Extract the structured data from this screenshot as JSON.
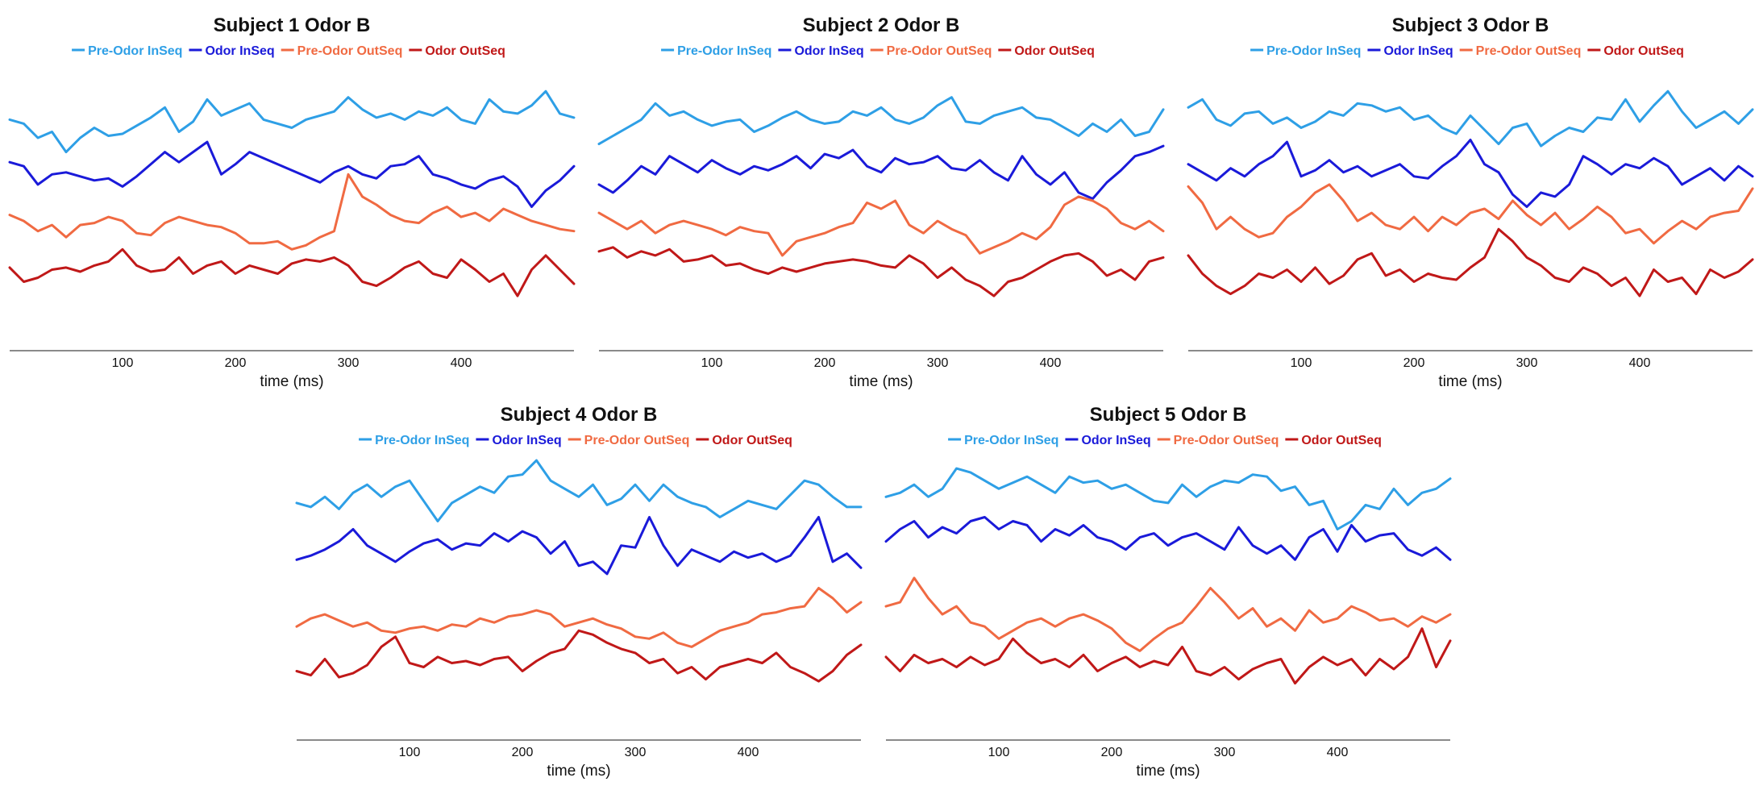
{
  "figure": {
    "xlabel": "time (ms)",
    "colors": {
      "pre_odor_inseq": "#2E9FE6",
      "odor_inseq": "#1A1AD9",
      "pre_odor_outseq": "#F06A42",
      "odor_outseq": "#C01818"
    }
  },
  "chart_data": [
    {
      "type": "line",
      "title": "Subject 1 Odor B",
      "xlabel": "time (ms)",
      "xticks": [
        100,
        200,
        300,
        400
      ],
      "xlim": [
        0,
        500
      ],
      "ylim": [
        0,
        14
      ],
      "series": [
        {
          "name": "Pre-Odor InSeq",
          "key": "pre_odor_inseq",
          "values": [
            11.2,
            11.0,
            10.3,
            10.6,
            9.6,
            10.3,
            10.8,
            10.4,
            10.5,
            10.9,
            11.3,
            11.8,
            10.6,
            11.1,
            12.2,
            11.4,
            11.7,
            12.0,
            11.2,
            11.0,
            10.8,
            11.2,
            11.4,
            11.6,
            12.3,
            11.7,
            11.3,
            11.5,
            11.2,
            11.6,
            11.4,
            11.8,
            11.2,
            11.0,
            12.2,
            11.6,
            11.5,
            11.9,
            12.6,
            11.5,
            11.3
          ]
        },
        {
          "name": "Odor InSeq",
          "key": "odor_inseq",
          "values": [
            9.1,
            8.9,
            8.0,
            8.5,
            8.6,
            8.4,
            8.2,
            8.3,
            7.9,
            8.4,
            9.0,
            9.6,
            9.1,
            9.6,
            10.1,
            8.5,
            9.0,
            9.6,
            9.3,
            9.0,
            8.7,
            8.4,
            8.1,
            8.6,
            8.9,
            8.5,
            8.3,
            8.9,
            9.0,
            9.4,
            8.5,
            8.3,
            8.0,
            7.8,
            8.2,
            8.4,
            7.9,
            6.9,
            7.7,
            8.2,
            8.9
          ]
        },
        {
          "name": "Pre-Odor OutSeq",
          "key": "pre_odor_outseq",
          "values": [
            6.5,
            6.2,
            5.7,
            6.0,
            5.4,
            6.0,
            6.1,
            6.4,
            6.2,
            5.6,
            5.5,
            6.1,
            6.4,
            6.2,
            6.0,
            5.9,
            5.6,
            5.1,
            5.1,
            5.2,
            4.8,
            5.0,
            5.4,
            5.7,
            8.5,
            7.4,
            7.0,
            6.5,
            6.2,
            6.1,
            6.6,
            6.9,
            6.4,
            6.6,
            6.2,
            6.8,
            6.5,
            6.2,
            6.0,
            5.8,
            5.7
          ]
        },
        {
          "name": "Odor OutSeq",
          "key": "odor_outseq",
          "values": [
            3.9,
            3.2,
            3.4,
            3.8,
            3.9,
            3.7,
            4.0,
            4.2,
            4.8,
            4.0,
            3.7,
            3.8,
            4.4,
            3.6,
            4.0,
            4.2,
            3.6,
            4.0,
            3.8,
            3.6,
            4.1,
            4.3,
            4.2,
            4.4,
            4.0,
            3.2,
            3.0,
            3.4,
            3.9,
            4.2,
            3.6,
            3.4,
            4.3,
            3.8,
            3.2,
            3.6,
            2.5,
            3.8,
            4.5,
            3.8,
            3.1
          ]
        }
      ]
    },
    {
      "type": "line",
      "title": "Subject 2 Odor B",
      "xlabel": "time (ms)",
      "xticks": [
        100,
        200,
        300,
        400
      ],
      "xlim": [
        0,
        500
      ],
      "ylim": [
        0,
        14
      ],
      "series": [
        {
          "name": "Pre-Odor InSeq",
          "key": "pre_odor_inseq",
          "values": [
            10.0,
            10.4,
            10.8,
            11.2,
            12.0,
            11.4,
            11.6,
            11.2,
            10.9,
            11.1,
            11.2,
            10.6,
            10.9,
            11.3,
            11.6,
            11.2,
            11.0,
            11.1,
            11.6,
            11.4,
            11.8,
            11.2,
            11.0,
            11.3,
            11.9,
            12.3,
            11.1,
            11.0,
            11.4,
            11.6,
            11.8,
            11.3,
            11.2,
            10.8,
            10.4,
            11.0,
            10.6,
            11.2,
            10.4,
            10.6,
            11.7
          ]
        },
        {
          "name": "Odor InSeq",
          "key": "odor_inseq",
          "values": [
            8.0,
            7.6,
            8.2,
            8.9,
            8.5,
            9.4,
            9.0,
            8.6,
            9.2,
            8.8,
            8.5,
            8.9,
            8.7,
            9.0,
            9.4,
            8.8,
            9.5,
            9.3,
            9.7,
            8.9,
            8.6,
            9.3,
            9.0,
            9.1,
            9.4,
            8.8,
            8.7,
            9.2,
            8.6,
            8.2,
            9.4,
            8.5,
            8.0,
            8.6,
            7.6,
            7.3,
            8.1,
            8.7,
            9.4,
            9.6,
            9.9
          ]
        },
        {
          "name": "Pre-Odor OutSeq",
          "key": "pre_odor_outseq",
          "values": [
            6.6,
            6.2,
            5.8,
            6.2,
            5.6,
            6.0,
            6.2,
            6.0,
            5.8,
            5.5,
            5.9,
            5.7,
            5.6,
            4.5,
            5.2,
            5.4,
            5.6,
            5.9,
            6.1,
            7.1,
            6.8,
            7.2,
            6.0,
            5.6,
            6.2,
            5.8,
            5.5,
            4.6,
            4.9,
            5.2,
            5.6,
            5.3,
            5.9,
            7.0,
            7.4,
            7.2,
            6.8,
            6.1,
            5.8,
            6.2,
            5.7
          ]
        },
        {
          "name": "Odor OutSeq",
          "key": "odor_outseq",
          "values": [
            4.7,
            4.9,
            4.4,
            4.7,
            4.5,
            4.8,
            4.2,
            4.3,
            4.5,
            4.0,
            4.1,
            3.8,
            3.6,
            3.9,
            3.7,
            3.9,
            4.1,
            4.2,
            4.3,
            4.2,
            4.0,
            3.9,
            4.5,
            4.1,
            3.4,
            3.9,
            3.3,
            3.0,
            2.5,
            3.2,
            3.4,
            3.8,
            4.2,
            4.5,
            4.6,
            4.2,
            3.5,
            3.8,
            3.3,
            4.2,
            4.4
          ]
        }
      ]
    },
    {
      "type": "line",
      "title": "Subject 3 Odor B",
      "xlabel": "time (ms)",
      "xticks": [
        100,
        200,
        300,
        400
      ],
      "xlim": [
        0,
        500
      ],
      "ylim": [
        0,
        14
      ],
      "series": [
        {
          "name": "Pre-Odor InSeq",
          "key": "pre_odor_inseq",
          "values": [
            11.8,
            12.2,
            11.2,
            10.9,
            11.5,
            11.6,
            11.0,
            11.3,
            10.8,
            11.1,
            11.6,
            11.4,
            12.0,
            11.9,
            11.6,
            11.8,
            11.2,
            11.4,
            10.8,
            10.5,
            11.4,
            10.7,
            10.0,
            10.8,
            11.0,
            9.9,
            10.4,
            10.8,
            10.6,
            11.3,
            11.2,
            12.2,
            11.1,
            11.9,
            12.6,
            11.6,
            10.8,
            11.2,
            11.6,
            11.0,
            11.7
          ]
        },
        {
          "name": "Odor InSeq",
          "key": "odor_inseq",
          "values": [
            9.0,
            8.6,
            8.2,
            8.8,
            8.4,
            9.0,
            9.4,
            10.1,
            8.4,
            8.7,
            9.2,
            8.6,
            8.9,
            8.4,
            8.7,
            9.0,
            8.4,
            8.3,
            8.9,
            9.4,
            10.2,
            9.0,
            8.6,
            7.5,
            6.9,
            7.6,
            7.4,
            8.0,
            9.4,
            9.0,
            8.5,
            9.0,
            8.8,
            9.3,
            8.9,
            8.0,
            8.4,
            8.8,
            8.2,
            8.9,
            8.4
          ]
        },
        {
          "name": "Pre-Odor OutSeq",
          "key": "pre_odor_outseq",
          "values": [
            7.9,
            7.1,
            5.8,
            6.4,
            5.8,
            5.4,
            5.6,
            6.4,
            6.9,
            7.6,
            8.0,
            7.2,
            6.2,
            6.6,
            6.0,
            5.8,
            6.4,
            5.7,
            6.4,
            6.0,
            6.6,
            6.8,
            6.3,
            7.2,
            6.5,
            6.0,
            6.6,
            5.8,
            6.3,
            6.9,
            6.4,
            5.6,
            5.8,
            5.1,
            5.7,
            6.2,
            5.8,
            6.4,
            6.6,
            6.7,
            7.8
          ]
        },
        {
          "name": "Odor OutSeq",
          "key": "odor_outseq",
          "values": [
            4.5,
            3.6,
            3.0,
            2.6,
            3.0,
            3.6,
            3.4,
            3.8,
            3.2,
            3.9,
            3.1,
            3.5,
            4.3,
            4.6,
            3.5,
            3.8,
            3.2,
            3.6,
            3.4,
            3.3,
            3.9,
            4.4,
            5.8,
            5.2,
            4.4,
            4.0,
            3.4,
            3.2,
            3.9,
            3.6,
            3.0,
            3.4,
            2.5,
            3.8,
            3.2,
            3.4,
            2.6,
            3.8,
            3.4,
            3.7,
            4.3
          ]
        }
      ]
    },
    {
      "type": "line",
      "title": "Subject 4 Odor B",
      "xlabel": "time (ms)",
      "xticks": [
        100,
        200,
        300,
        400
      ],
      "xlim": [
        0,
        500
      ],
      "ylim": [
        0,
        14
      ],
      "series": [
        {
          "name": "Pre-Odor InSeq",
          "key": "pre_odor_inseq",
          "values": [
            11.5,
            11.3,
            11.8,
            11.2,
            12.0,
            12.4,
            11.8,
            12.3,
            12.6,
            11.6,
            10.6,
            11.5,
            11.9,
            12.3,
            12.0,
            12.8,
            12.9,
            13.6,
            12.6,
            12.2,
            11.8,
            12.4,
            11.4,
            11.7,
            12.4,
            11.6,
            12.4,
            11.8,
            11.5,
            11.3,
            10.8,
            11.2,
            11.6,
            11.4,
            11.2,
            11.9,
            12.6,
            12.4,
            11.8,
            11.3,
            11.3
          ]
        },
        {
          "name": "Odor InSeq",
          "key": "odor_inseq",
          "values": [
            8.7,
            8.9,
            9.2,
            9.6,
            10.2,
            9.4,
            9.0,
            8.6,
            9.1,
            9.5,
            9.7,
            9.2,
            9.5,
            9.4,
            10.0,
            9.6,
            10.1,
            9.8,
            9.0,
            9.6,
            8.4,
            8.6,
            8.0,
            9.4,
            9.3,
            10.8,
            9.4,
            8.4,
            9.2,
            8.9,
            8.6,
            9.1,
            8.8,
            9.0,
            8.6,
            8.9,
            9.8,
            10.8,
            8.6,
            9.0,
            8.3
          ]
        },
        {
          "name": "Pre-Odor OutSeq",
          "key": "pre_odor_outseq",
          "values": [
            5.4,
            5.8,
            6.0,
            5.7,
            5.4,
            5.6,
            5.2,
            5.1,
            5.3,
            5.4,
            5.2,
            5.5,
            5.4,
            5.8,
            5.6,
            5.9,
            6.0,
            6.2,
            6.0,
            5.4,
            5.6,
            5.8,
            5.5,
            5.3,
            4.9,
            4.8,
            5.1,
            4.6,
            4.4,
            4.8,
            5.2,
            5.4,
            5.6,
            6.0,
            6.1,
            6.3,
            6.4,
            7.3,
            6.8,
            6.1,
            6.6
          ]
        },
        {
          "name": "Odor OutSeq",
          "key": "odor_outseq",
          "values": [
            3.2,
            3.0,
            3.8,
            2.9,
            3.1,
            3.5,
            4.4,
            4.9,
            3.6,
            3.4,
            3.9,
            3.6,
            3.7,
            3.5,
            3.8,
            3.9,
            3.2,
            3.7,
            4.1,
            4.3,
            5.2,
            5.0,
            4.6,
            4.3,
            4.1,
            3.6,
            3.8,
            3.1,
            3.4,
            2.8,
            3.4,
            3.6,
            3.8,
            3.6,
            4.1,
            3.4,
            3.1,
            2.7,
            3.2,
            4.0,
            4.5
          ]
        }
      ]
    },
    {
      "type": "line",
      "title": "Subject 5 Odor B",
      "xlabel": "time (ms)",
      "xticks": [
        100,
        200,
        300,
        400
      ],
      "xlim": [
        0,
        500
      ],
      "ylim": [
        0,
        14
      ],
      "series": [
        {
          "name": "Pre-Odor InSeq",
          "key": "pre_odor_inseq",
          "values": [
            11.8,
            12.0,
            12.4,
            11.8,
            12.2,
            13.2,
            13.0,
            12.6,
            12.2,
            12.5,
            12.8,
            12.4,
            12.0,
            12.8,
            12.5,
            12.6,
            12.2,
            12.4,
            12.0,
            11.6,
            11.5,
            12.4,
            11.8,
            12.3,
            12.6,
            12.5,
            12.9,
            12.8,
            12.1,
            12.3,
            11.4,
            11.6,
            10.2,
            10.6,
            11.4,
            11.2,
            12.2,
            11.4,
            12.0,
            12.2,
            12.7
          ]
        },
        {
          "name": "Odor InSeq",
          "key": "odor_inseq",
          "values": [
            9.6,
            10.2,
            10.6,
            9.8,
            10.3,
            10.0,
            10.6,
            10.8,
            10.2,
            10.6,
            10.4,
            9.6,
            10.2,
            9.9,
            10.4,
            9.8,
            9.6,
            9.2,
            9.8,
            10.0,
            9.4,
            9.8,
            10.0,
            9.6,
            9.2,
            10.3,
            9.4,
            9.0,
            9.4,
            8.7,
            9.8,
            10.2,
            9.1,
            10.4,
            9.6,
            9.9,
            10.0,
            9.2,
            8.9,
            9.3,
            8.7
          ]
        },
        {
          "name": "Pre-Odor OutSeq",
          "key": "pre_odor_outseq",
          "values": [
            6.4,
            6.6,
            7.8,
            6.8,
            6.0,
            6.4,
            5.6,
            5.4,
            4.8,
            5.2,
            5.6,
            5.8,
            5.4,
            5.8,
            6.0,
            5.7,
            5.3,
            4.6,
            4.2,
            4.8,
            5.3,
            5.6,
            6.4,
            7.3,
            6.6,
            5.8,
            6.3,
            5.4,
            5.8,
            5.2,
            6.2,
            5.6,
            5.8,
            6.4,
            6.1,
            5.7,
            5.8,
            5.4,
            5.9,
            5.6,
            6.0
          ]
        },
        {
          "name": "Odor OutSeq",
          "key": "odor_outseq",
          "values": [
            3.9,
            3.2,
            4.0,
            3.6,
            3.8,
            3.4,
            3.9,
            3.5,
            3.8,
            4.8,
            4.1,
            3.6,
            3.8,
            3.4,
            4.0,
            3.2,
            3.6,
            3.9,
            3.4,
            3.7,
            3.5,
            4.4,
            3.2,
            3.0,
            3.4,
            2.8,
            3.3,
            3.6,
            3.8,
            2.6,
            3.4,
            3.9,
            3.5,
            3.8,
            3.0,
            3.8,
            3.3,
            3.9,
            5.3,
            3.4,
            4.7
          ]
        }
      ]
    }
  ]
}
